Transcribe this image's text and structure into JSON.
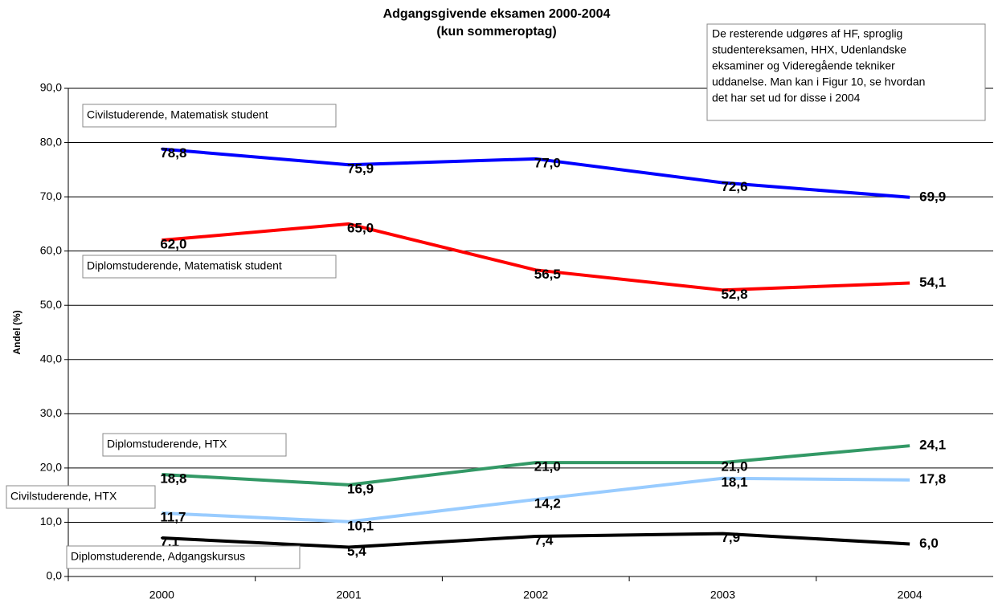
{
  "chart_data": {
    "type": "line",
    "title": "Adgangsgivende eksamen 2000-2004",
    "subtitle": "(kun sommeroptag)",
    "y_label": "Andel (%)",
    "note": [
      "De resterende udgøres af HF, sproglig",
      "studentereksamen, HHX, Udenlandske",
      "eksaminer og Videregående tekniker",
      "uddanelse. Man kan i Figur 10, se hvordan",
      "det har set ud for disse i 2004"
    ],
    "categories": [
      "2000",
      "2001",
      "2002",
      "2003",
      "2004"
    ],
    "ylim": [
      0,
      90
    ],
    "yticks": [
      {
        "value": 0,
        "label": "0,0"
      },
      {
        "value": 10,
        "label": "10,0"
      },
      {
        "value": 20,
        "label": "20,0"
      },
      {
        "value": 30,
        "label": "30,0"
      },
      {
        "value": 40,
        "label": "40,0"
      },
      {
        "value": 50,
        "label": "50,0"
      },
      {
        "value": 60,
        "label": "60,0"
      },
      {
        "value": 70,
        "label": "70,0"
      },
      {
        "value": 80,
        "label": "80,0"
      },
      {
        "value": 90,
        "label": "90,0"
      }
    ],
    "grid": true,
    "series": [
      {
        "name": "Civilstuderende, Matematisk student",
        "color": "#0000ff",
        "values": [
          78.8,
          75.9,
          77.0,
          72.6,
          69.9
        ],
        "value_labels": [
          "78,8",
          "75,9",
          "77,0",
          "72,6",
          "69,9"
        ]
      },
      {
        "name": "Diplomstuderende, Matematisk student",
        "color": "#ff0000",
        "values": [
          62.0,
          65.0,
          56.5,
          52.8,
          54.1
        ],
        "value_labels": [
          "62,0",
          "65,0",
          "56,5",
          "52,8",
          "54,1"
        ]
      },
      {
        "name": "Diplomstuderende, HTX",
        "color": "#339966",
        "values": [
          18.8,
          16.9,
          21.0,
          21.0,
          24.1
        ],
        "value_labels": [
          "18,8",
          "16,9",
          "21,0",
          "21,0",
          "24,1"
        ]
      },
      {
        "name": "Civilstuderende, HTX",
        "color": "#99ccff",
        "values": [
          11.7,
          10.1,
          14.2,
          18.1,
          17.8
        ],
        "value_labels": [
          "11,7",
          "10,1",
          "14,2",
          "18,1",
          "17,8"
        ]
      },
      {
        "name": "Diplomstuderende, Adgangskursus",
        "color": "#000000",
        "values": [
          7.1,
          5.4,
          7.4,
          7.9,
          6.0
        ],
        "value_labels": [
          "7,1",
          "5,4",
          "7,4",
          "7,9",
          "6,0"
        ]
      }
    ]
  }
}
